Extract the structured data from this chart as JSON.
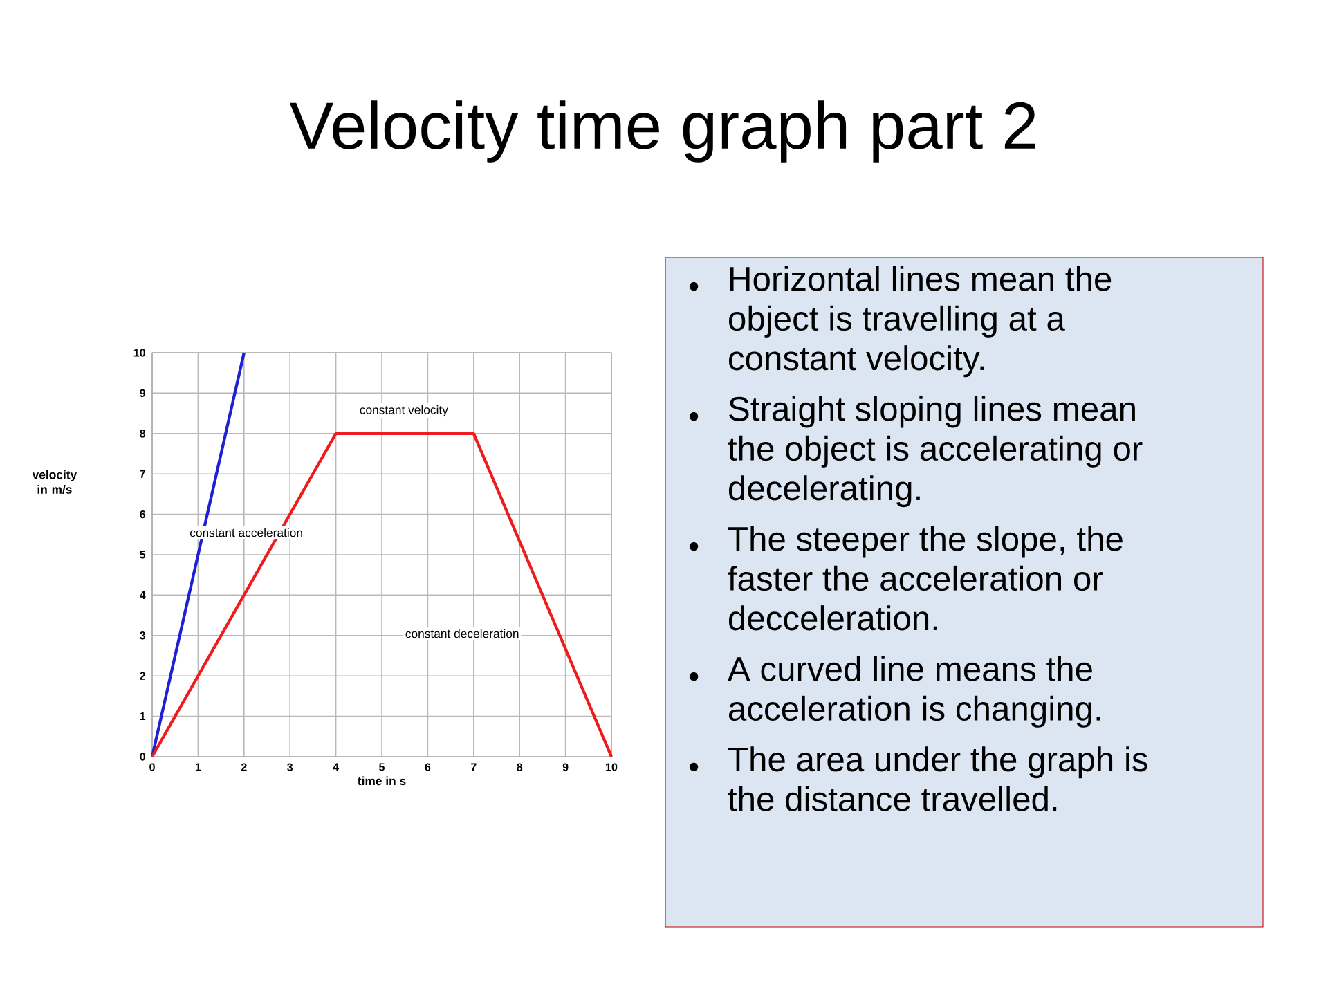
{
  "chart_data": {
    "type": "line",
    "title": "Velocity time graph part 2",
    "xlabel": "time in s",
    "ylabel": "velocity in m/s",
    "xlim": [
      0,
      10
    ],
    "ylim": [
      0,
      10
    ],
    "xticks": [
      0,
      1,
      2,
      3,
      4,
      5,
      6,
      7,
      8,
      9,
      10
    ],
    "yticks": [
      0,
      1,
      2,
      3,
      4,
      5,
      6,
      7,
      8,
      9,
      10
    ],
    "grid": true,
    "series": [
      {
        "color": "#1f1fd6",
        "x": [
          0,
          2
        ],
        "values": [
          0,
          10
        ]
      },
      {
        "color": "#ee1c1c",
        "x": [
          0,
          4,
          7,
          10
        ],
        "values": [
          0,
          8,
          8,
          0
        ]
      }
    ],
    "annotations": [
      "constant velocity",
      "constant acceleration",
      "constant deceleration",
      "Horizontal lines mean the object is travelling at a constant velocity.",
      "Straight sloping lines mean the object is accelerating or decelerating.",
      "The steeper the slope, the faster the acceleration or decceleration.",
      "A curved line means the acceleration is changing.",
      "The area under the graph is the distance travelled."
    ]
  }
}
